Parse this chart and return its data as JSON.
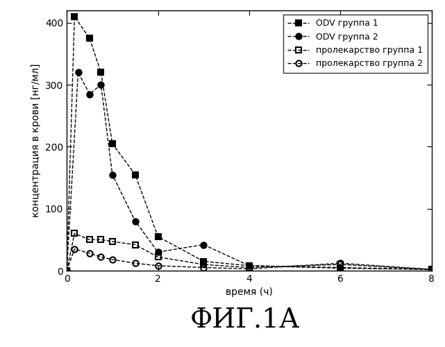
{
  "series": {
    "ODV_group1": {
      "x": [
        0,
        0.17,
        0.5,
        0.75,
        1.0,
        1.5,
        2.0,
        3.0,
        4.0,
        6.0,
        8.0
      ],
      "y": [
        0,
        410,
        375,
        320,
        205,
        155,
        55,
        15,
        8,
        5,
        2
      ],
      "label": "ODV группа 1",
      "marker": "s",
      "fillstyle": "full",
      "color": "#000000",
      "linestyle": "--"
    },
    "ODV_group2": {
      "x": [
        0,
        0.25,
        0.5,
        0.75,
        1.0,
        1.5,
        2.0,
        3.0,
        4.0,
        6.0,
        8.0
      ],
      "y": [
        0,
        320,
        285,
        300,
        155,
        80,
        30,
        42,
        8,
        4,
        2
      ],
      "label": "ODV группа 2",
      "marker": "o",
      "fillstyle": "full",
      "color": "#000000",
      "linestyle": "--"
    },
    "prodrug_group1": {
      "x": [
        0,
        0.17,
        0.5,
        0.75,
        1.0,
        1.5,
        2.0,
        3.0,
        4.0,
        6.0,
        8.0
      ],
      "y": [
        0,
        60,
        50,
        50,
        47,
        42,
        22,
        10,
        5,
        10,
        2
      ],
      "label": "пролекарство группа 1",
      "marker": "s",
      "fillstyle": "none",
      "color": "#000000",
      "linestyle": "--"
    },
    "prodrug_group2": {
      "x": [
        0,
        0.17,
        0.5,
        0.75,
        1.0,
        1.5,
        2.0,
        3.0,
        4.0,
        6.0,
        8.0
      ],
      "y": [
        0,
        35,
        28,
        22,
        18,
        12,
        8,
        5,
        3,
        12,
        2
      ],
      "label": "пролекарство группа 2",
      "marker": "o",
      "fillstyle": "none",
      "color": "#000000",
      "linestyle": "--"
    }
  },
  "xlabel": "время (ч)",
  "ylabel": "концентрация в крови [нг/мл]",
  "title": "ФИГ.1А",
  "xlim": [
    0,
    8
  ],
  "ylim": [
    0,
    420
  ],
  "xticks": [
    0,
    2,
    4,
    6,
    8
  ],
  "yticks": [
    0,
    100,
    200,
    300,
    400
  ],
  "background_color": "#ffffff",
  "legend_fontsize": 9,
  "axis_label_fontsize": 10,
  "tick_fontsize": 10,
  "title_fontsize": 28
}
